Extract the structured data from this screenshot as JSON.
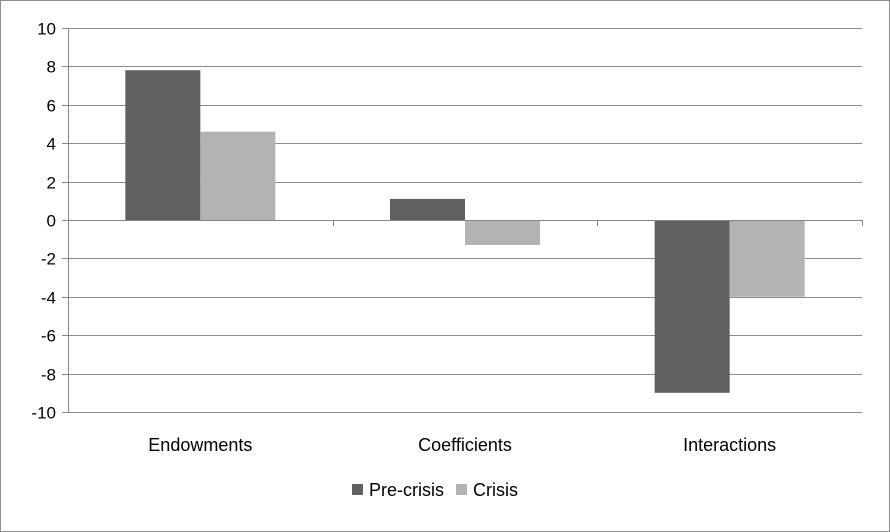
{
  "chart_data": {
    "type": "bar",
    "categories": [
      "Endowments",
      "Coefficients",
      "Interactions"
    ],
    "series": [
      {
        "name": "Pre-crisis",
        "values": [
          7.8,
          1.1,
          -9.0
        ]
      },
      {
        "name": "Crisis",
        "values": [
          4.6,
          -1.3,
          -4.0
        ]
      }
    ],
    "ylim": [
      -10,
      10
    ],
    "yticks": [
      10,
      8,
      6,
      4,
      2,
      0,
      -2,
      -4,
      -6,
      -8,
      -10
    ],
    "grid": true,
    "legend": "bottom",
    "colors": {
      "Pre-crisis": "#606060",
      "Crisis": "#b3b3b3",
      "grid": "#8c8c8c",
      "axis": "#868686"
    }
  }
}
